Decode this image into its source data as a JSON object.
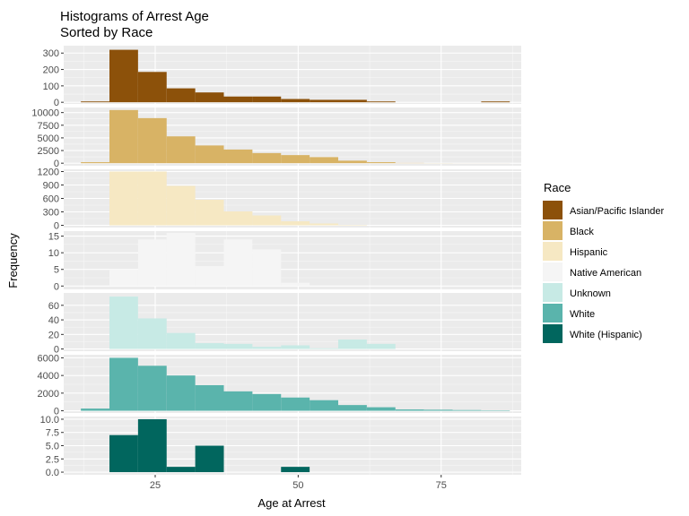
{
  "chart_data": {
    "type": "bar",
    "title": "Histograms of Arrest Age\nSorted by Race",
    "xlabel": "Age at Arrest",
    "ylabel": "Frequency",
    "xlim": [
      9,
      89
    ],
    "xticks": [
      25,
      50,
      75
    ],
    "bins": [
      [
        12,
        17
      ],
      [
        17,
        22
      ],
      [
        22,
        27
      ],
      [
        27,
        32
      ],
      [
        32,
        37
      ],
      [
        37,
        42
      ],
      [
        42,
        47
      ],
      [
        47,
        52
      ],
      [
        52,
        57
      ],
      [
        57,
        62
      ],
      [
        62,
        67
      ],
      [
        67,
        72
      ],
      [
        72,
        77
      ],
      [
        77,
        82
      ],
      [
        82,
        87
      ]
    ],
    "legend": {
      "title": "Race",
      "position": "right"
    },
    "panels": [
      {
        "name": "Asian/Pacific Islander",
        "color": "#8C510A",
        "ylim": [
          -10,
          345
        ],
        "yticks": [
          0,
          100,
          200,
          300
        ],
        "values": [
          5,
          320,
          185,
          85,
          60,
          35,
          35,
          20,
          15,
          15,
          5,
          0,
          0,
          0,
          5
        ]
      },
      {
        "name": "Black",
        "color": "#D8B365",
        "ylim": [
          -500,
          11000
        ],
        "yticks": [
          0,
          2500,
          5000,
          7500,
          10000
        ],
        "values": [
          200,
          10500,
          8900,
          5300,
          3500,
          2700,
          2000,
          1600,
          1200,
          500,
          200,
          50,
          20,
          10,
          10
        ]
      },
      {
        "name": "Hispanic",
        "color": "#F6E8C3",
        "ylim": [
          -50,
          1250
        ],
        "yticks": [
          0,
          300,
          600,
          900,
          1200
        ],
        "values": [
          0,
          1200,
          1200,
          880,
          570,
          310,
          220,
          90,
          40,
          10,
          0,
          0,
          0,
          0,
          0
        ]
      },
      {
        "name": "Native American",
        "color": "#F5F5F5",
        "ylim": [
          -1,
          16.5
        ],
        "yticks": [
          0,
          5,
          10,
          15
        ],
        "values": [
          0,
          5,
          14,
          16,
          6,
          14,
          11,
          1,
          0,
          0,
          0,
          0,
          0,
          0,
          0
        ]
      },
      {
        "name": "Unknown",
        "color": "#C7EAE5",
        "ylim": [
          -3,
          77
        ],
        "yticks": [
          0,
          20,
          40,
          60
        ],
        "values": [
          0,
          72,
          42,
          22,
          8,
          7,
          3,
          5,
          1,
          13,
          7,
          0,
          0,
          0,
          0
        ]
      },
      {
        "name": "White",
        "color": "#5AB4AC",
        "ylim": [
          -250,
          6350
        ],
        "yticks": [
          0,
          2000,
          4000,
          6000
        ],
        "values": [
          250,
          6000,
          5100,
          4000,
          2900,
          2200,
          1900,
          1500,
          1200,
          650,
          400,
          150,
          120,
          80,
          50
        ]
      },
      {
        "name": "White (Hispanic)",
        "color": "#01665E",
        "ylim": [
          -0.5,
          10.5
        ],
        "yticks": [
          0.0,
          2.5,
          5.0,
          7.5,
          10.0
        ],
        "ytick_labels": [
          "0.0",
          "2.5",
          "5.0",
          "7.5",
          "10.0"
        ],
        "values": [
          0,
          7,
          10,
          1,
          5,
          0,
          0,
          1,
          0,
          0,
          0,
          0,
          0,
          0,
          0
        ]
      }
    ]
  }
}
